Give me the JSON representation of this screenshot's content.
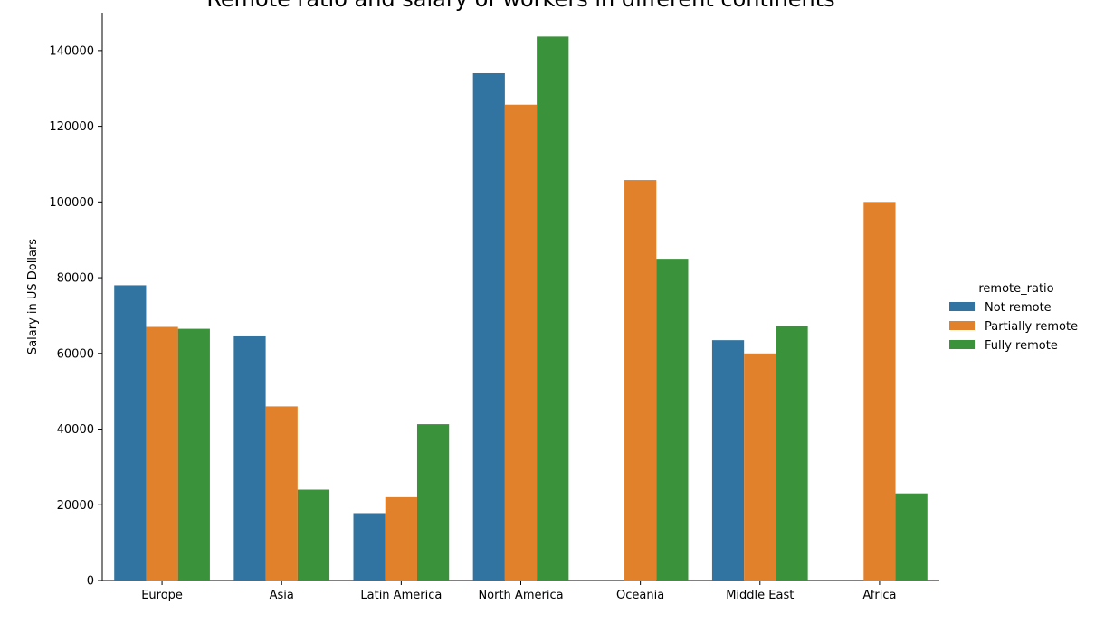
{
  "chart_data": {
    "type": "bar",
    "title": "Remote ratio and salary of workers in different continents",
    "xlabel": "",
    "ylabel": "Salary in US Dollars",
    "ylim": [
      0,
      150000
    ],
    "yticks": [
      0,
      20000,
      40000,
      60000,
      80000,
      100000,
      120000,
      140000
    ],
    "categories": [
      "Europe",
      "Asia",
      "Latin America",
      "North America",
      "Oceania",
      "Middle East",
      "Africa"
    ],
    "series": [
      {
        "name": "Not remote",
        "color": "#3274a1",
        "values": [
          78000,
          64500,
          17800,
          134000,
          null,
          63500,
          null
        ]
      },
      {
        "name": "Partially remote",
        "color": "#e1812c",
        "values": [
          67000,
          46000,
          22000,
          125700,
          105800,
          60000,
          100000
        ]
      },
      {
        "name": "Fully remote",
        "color": "#3a923a",
        "values": [
          66500,
          24000,
          41300,
          143700,
          85000,
          67200,
          23000
        ]
      }
    ],
    "legend": {
      "title": "remote_ratio",
      "placement": "right"
    },
    "grid": false
  }
}
